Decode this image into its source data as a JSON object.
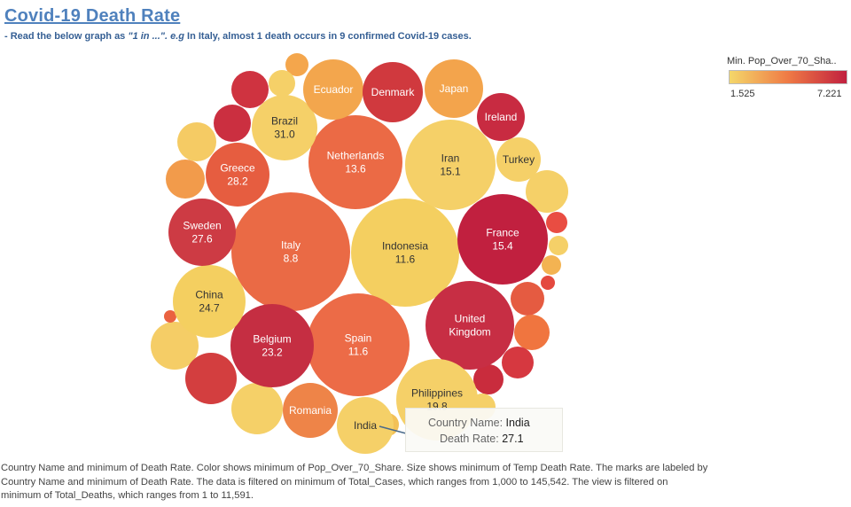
{
  "header": {
    "title": "Covid-19 Death Rate",
    "subtitle_prefix": "- Read the below graph as ",
    "subtitle_quote": "\"1 in ...\". e.g",
    "subtitle_suffix": " In Italy, almost 1 death occurs in 9 confirmed Covid-19 cases."
  },
  "legend": {
    "title": "Min. Pop_Over_70_Sha..",
    "min_label": "1.525",
    "max_label": "7.221",
    "color_low": "#f4d76a",
    "color_mid": "#ef7a45",
    "color_high": "#c1203f"
  },
  "tooltip": {
    "country_label": "Country Name:",
    "country_value": "India",
    "rate_label": "Death Rate:",
    "rate_value": "27.1"
  },
  "footnote": "Country Name and minimum of Death Rate.  Color shows minimum of Pop_Over_70_Share.  Size shows minimum of Temp Death Rate.  The marks are labeled by Country Name and minimum of Death Rate. The data is filtered on minimum of Total_Cases, which ranges from 1,000 to 145,542. The view is filtered on minimum of Total_Deaths, which ranges from 1 to 11,591.",
  "chart_data": {
    "type": "bubble",
    "title": "Covid-19 Death Rate",
    "color_measure": "Min. Pop_Over_70_Share",
    "color_range": [
      1.525,
      7.221
    ],
    "labeled_points": [
      {
        "country": "Italy",
        "death_rate": "8.8",
        "color": "#ea6a45"
      },
      {
        "country": "Indonesia",
        "death_rate": "11.6",
        "color": "#f4cf60"
      },
      {
        "country": "Spain",
        "death_rate": "11.6",
        "color": "#ec6b47"
      },
      {
        "country": "Netherlands",
        "death_rate": "13.6",
        "color": "#eb6a45"
      },
      {
        "country": "Iran",
        "death_rate": "15.1",
        "color": "#f5d068"
      },
      {
        "country": "France",
        "death_rate": "15.4",
        "color": "#c1203f"
      },
      {
        "country": "United Kingdom",
        "death_rate": "",
        "color": "#c72e44"
      },
      {
        "country": "Philippines",
        "death_rate": "19.8",
        "color": "#f5d068"
      },
      {
        "country": "Belgium",
        "death_rate": "23.2",
        "color": "#c52e42"
      },
      {
        "country": "China",
        "death_rate": "24.7",
        "color": "#f4cf60"
      },
      {
        "country": "Sweden",
        "death_rate": "27.6",
        "color": "#cd3b44"
      },
      {
        "country": "Greece",
        "death_rate": "28.2",
        "color": "#e65d40"
      },
      {
        "country": "Brazil",
        "death_rate": "31.0",
        "color": "#f5d068"
      },
      {
        "country": "Ecuador",
        "death_rate": "",
        "color": "#f3a64d"
      },
      {
        "country": "Denmark",
        "death_rate": "",
        "color": "#d0393e"
      },
      {
        "country": "Japan",
        "death_rate": "",
        "color": "#f3a44c"
      },
      {
        "country": "Ireland",
        "death_rate": "",
        "color": "#c82b41"
      },
      {
        "country": "Turkey",
        "death_rate": "",
        "color": "#f5d068"
      },
      {
        "country": "Romania",
        "death_rate": "",
        "color": "#ee8448"
      },
      {
        "country": "India",
        "death_rate": "",
        "color": "#f5d068"
      }
    ],
    "unlabeled_points": [
      {
        "color": "#f4a64c"
      },
      {
        "color": "#f5d068"
      },
      {
        "color": "#cf3340"
      },
      {
        "color": "#cb2f40"
      },
      {
        "color": "#f5cb64"
      },
      {
        "color": "#f29b4b"
      },
      {
        "color": "#f5d068"
      },
      {
        "color": "#e94d42"
      },
      {
        "color": "#f5d068"
      },
      {
        "color": "#f3b352"
      },
      {
        "color": "#e4493f"
      },
      {
        "color": "#e55b41"
      },
      {
        "color": "#f0753f"
      },
      {
        "color": "#d63840"
      },
      {
        "color": "#c92c3d"
      },
      {
        "color": "#f5d068"
      },
      {
        "color": "#f5cd66"
      },
      {
        "color": "#ea6240"
      },
      {
        "color": "#d33e3f"
      },
      {
        "color": "#f5d068"
      },
      {
        "color": "#f3c157"
      }
    ]
  }
}
